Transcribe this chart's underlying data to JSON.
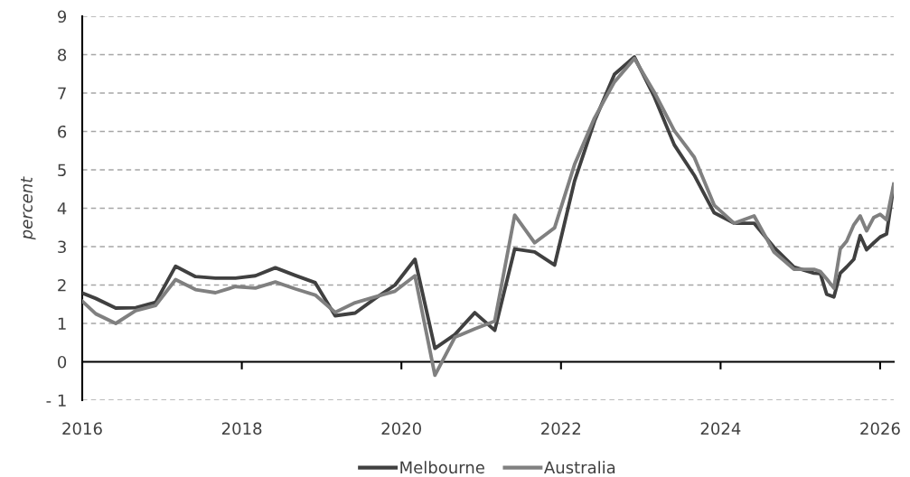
{
  "chart_data": {
    "type": "line",
    "ylabel": "percent",
    "xlim": [
      2016,
      2026.17
    ],
    "xticks": [
      2016,
      2018,
      2020,
      2022,
      2024,
      2026
    ],
    "ylim": [
      -1,
      9
    ],
    "yticks": [
      {
        "value": -1,
        "label": "- 1"
      },
      0,
      1,
      2,
      3,
      4,
      5,
      6,
      7,
      8,
      9
    ],
    "grid": "y",
    "legend": "bottom",
    "line_style": "solid",
    "marker": "none",
    "series": [
      {
        "name": "Melbourne",
        "color": "#404040",
        "x": [
          2016,
          2016.17,
          2016.42,
          2016.67,
          2016.92,
          2017.17,
          2017.42,
          2017.67,
          2017.92,
          2018.17,
          2018.42,
          2018.67,
          2018.92,
          2019.17,
          2019.42,
          2019.67,
          2019.92,
          2020.17,
          2020.42,
          2020.67,
          2020.92,
          2021.17,
          2021.42,
          2021.67,
          2021.92,
          2022.17,
          2022.42,
          2022.67,
          2022.92,
          2023.17,
          2023.42,
          2023.67,
          2023.92,
          2024.17,
          2024.42,
          2024.67,
          2024.92,
          2025.17,
          2025.25,
          2025.33,
          2025.42,
          2025.5,
          2025.58,
          2025.67,
          2025.75,
          2025.83,
          2025.92,
          2026,
          2026.08,
          2026.17
        ],
        "values": [
          1.79,
          1.65,
          1.4,
          1.41,
          1.55,
          2.49,
          2.22,
          2.18,
          2.18,
          2.24,
          2.45,
          2.25,
          2.06,
          1.2,
          1.27,
          1.65,
          2.0,
          2.67,
          0.35,
          0.71,
          1.28,
          0.82,
          2.94,
          2.86,
          2.52,
          4.71,
          6.27,
          7.49,
          7.94,
          6.9,
          5.65,
          4.86,
          3.88,
          3.61,
          3.61,
          2.98,
          2.47,
          2.31,
          2.3,
          1.76,
          1.69,
          2.31,
          2.47,
          2.67,
          3.29,
          2.92,
          3.1,
          3.25,
          3.33,
          4.59
        ]
      },
      {
        "name": "Australia",
        "color": "#808080",
        "x": [
          2016,
          2016.17,
          2016.42,
          2016.67,
          2016.92,
          2017.17,
          2017.42,
          2017.67,
          2017.92,
          2018.17,
          2018.42,
          2018.67,
          2018.92,
          2019.17,
          2019.42,
          2019.67,
          2019.92,
          2020.17,
          2020.42,
          2020.67,
          2020.92,
          2021.17,
          2021.42,
          2021.67,
          2021.92,
          2022.17,
          2022.42,
          2022.67,
          2022.92,
          2023.17,
          2023.42,
          2023.67,
          2023.92,
          2024.17,
          2024.42,
          2024.67,
          2024.92,
          2025.17,
          2025.25,
          2025.33,
          2025.42,
          2025.5,
          2025.58,
          2025.67,
          2025.75,
          2025.83,
          2025.92,
          2026,
          2026.08,
          2026.17
        ],
        "values": [
          1.58,
          1.25,
          1.0,
          1.33,
          1.47,
          2.14,
          1.88,
          1.8,
          1.96,
          1.92,
          2.08,
          1.9,
          1.74,
          1.29,
          1.54,
          1.69,
          1.84,
          2.24,
          -0.35,
          0.64,
          0.86,
          1.06,
          3.82,
          3.1,
          3.49,
          5.14,
          6.35,
          7.29,
          7.9,
          7.02,
          6.02,
          5.33,
          4.08,
          3.61,
          3.8,
          2.86,
          2.41,
          2.41,
          2.35,
          2.16,
          1.92,
          2.94,
          3.14,
          3.57,
          3.8,
          3.41,
          3.76,
          3.84,
          3.7,
          4.63
        ]
      }
    ]
  }
}
